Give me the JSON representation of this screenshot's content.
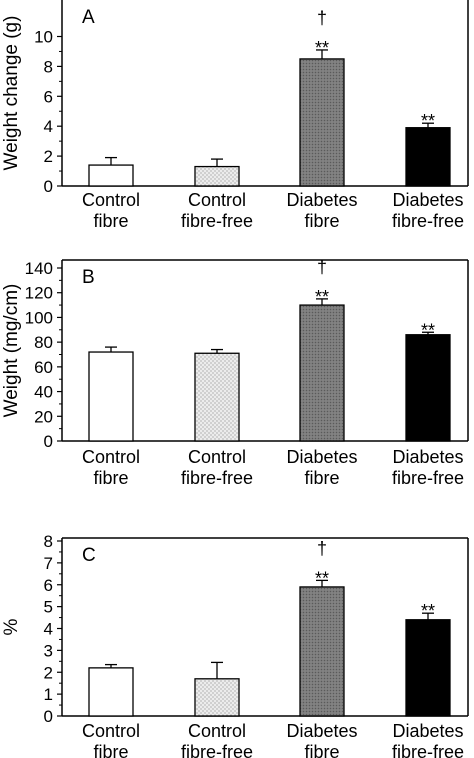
{
  "chart_data": [
    {
      "type": "bar",
      "panel_label": "A",
      "ylabel": "Weight change (g)",
      "ylim": [
        0,
        12
      ],
      "yticks": [
        0,
        2,
        4,
        6,
        8,
        10
      ],
      "categories": [
        [
          "Control",
          "fibre"
        ],
        [
          "Control",
          "fibre-free"
        ],
        [
          "Diabetes",
          "fibre"
        ],
        [
          "Diabetes",
          "fibre-free"
        ]
      ],
      "values": [
        1.4,
        1.3,
        8.5,
        3.9
      ],
      "errors": [
        0.5,
        0.5,
        0.6,
        0.3
      ],
      "fills": [
        "white",
        "dotted",
        "grey",
        "black"
      ],
      "annotations": [
        [],
        [],
        [
          "†",
          "**"
        ],
        [
          "**"
        ]
      ]
    },
    {
      "type": "bar",
      "panel_label": "B",
      "ylabel": "Weight (mg/cm)",
      "ylim": [
        0,
        140
      ],
      "yticks": [
        0,
        20,
        40,
        60,
        80,
        100,
        120,
        140
      ],
      "categories": [
        [
          "Control",
          "fibre"
        ],
        [
          "Control",
          "fibre-free"
        ],
        [
          "Diabetes",
          "fibre"
        ],
        [
          "Diabetes",
          "fibre-free"
        ]
      ],
      "values": [
        72,
        71,
        110,
        86
      ],
      "errors": [
        4,
        3,
        5,
        2
      ],
      "fills": [
        "white",
        "dotted",
        "grey",
        "black"
      ],
      "annotations": [
        [],
        [],
        [
          "†",
          "**"
        ],
        [
          "**"
        ]
      ]
    },
    {
      "type": "bar",
      "panel_label": "C",
      "ylabel": "%",
      "ylim": [
        0,
        8
      ],
      "yticks": [
        0,
        1,
        2,
        3,
        4,
        5,
        6,
        7,
        8
      ],
      "categories": [
        [
          "Control",
          "fibre"
        ],
        [
          "Control",
          "fibre-free"
        ],
        [
          "Diabetes",
          "fibre"
        ],
        [
          "Diabetes",
          "fibre-free"
        ]
      ],
      "values": [
        2.2,
        1.7,
        5.9,
        4.4
      ],
      "errors": [
        0.15,
        0.75,
        0.3,
        0.3
      ],
      "fills": [
        "white",
        "dotted",
        "grey",
        "black"
      ],
      "annotations": [
        [],
        [],
        [
          "†",
          "**"
        ],
        [
          "**"
        ]
      ]
    }
  ],
  "colors": {
    "white": "#ffffff",
    "dotted_bg": "#ececec",
    "dotted_dot": "#8a8a8a",
    "grey": "#7a7a7a",
    "grey_hatch": "#5a5a5a",
    "black": "#000000"
  }
}
